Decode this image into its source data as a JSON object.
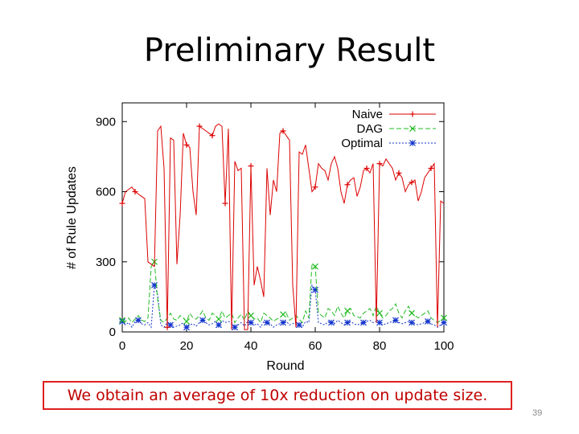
{
  "slide": {
    "title": "Preliminary Result",
    "caption": "We obtain an average of 10x reduction on update size.",
    "page_number": "39"
  },
  "chart_data": {
    "type": "line",
    "title": "",
    "xlabel": "Round",
    "ylabel": "# of Rule Updates",
    "xlim": [
      0,
      100
    ],
    "ylim": [
      0,
      980
    ],
    "xticks": [
      0,
      20,
      40,
      60,
      80,
      100
    ],
    "yticks": [
      0,
      300,
      600,
      900
    ],
    "grid": false,
    "legend_position": "top-right",
    "x": [
      0,
      1,
      2,
      3,
      4,
      5,
      6,
      7,
      8,
      9,
      10,
      11,
      12,
      13,
      14,
      15,
      16,
      17,
      18,
      19,
      20,
      21,
      22,
      23,
      24,
      25,
      26,
      27,
      28,
      29,
      30,
      31,
      32,
      33,
      34,
      35,
      36,
      37,
      38,
      39,
      40,
      41,
      42,
      43,
      44,
      45,
      46,
      47,
      48,
      49,
      50,
      51,
      52,
      53,
      54,
      55,
      56,
      57,
      58,
      59,
      60,
      61,
      62,
      63,
      64,
      65,
      66,
      67,
      68,
      69,
      70,
      71,
      72,
      73,
      74,
      75,
      76,
      77,
      78,
      79,
      80,
      81,
      82,
      83,
      84,
      85,
      86,
      87,
      88,
      89,
      90,
      91,
      92,
      93,
      94,
      95,
      96,
      97,
      98,
      99,
      100
    ],
    "series": [
      {
        "name": "Naive",
        "color": "#dd0000",
        "dash": "solid",
        "marker": "plus",
        "values": [
          550,
          600,
          610,
          620,
          600,
          590,
          580,
          570,
          300,
          290,
          280,
          860,
          880,
          700,
          20,
          830,
          820,
          290,
          500,
          850,
          800,
          790,
          600,
          500,
          880,
          870,
          860,
          850,
          840,
          880,
          890,
          880,
          550,
          870,
          10,
          730,
          690,
          700,
          10,
          10,
          710,
          200,
          280,
          220,
          150,
          700,
          500,
          650,
          600,
          850,
          860,
          840,
          820,
          200,
          20,
          770,
          760,
          800,
          700,
          600,
          620,
          720,
          700,
          690,
          650,
          720,
          750,
          700,
          600,
          550,
          630,
          650,
          660,
          580,
          620,
          690,
          700,
          680,
          720,
          40,
          720,
          710,
          740,
          720,
          700,
          650,
          680,
          660,
          600,
          630,
          640,
          650,
          560,
          600,
          660,
          680,
          700,
          720,
          20,
          560,
          550
        ],
        "marker_x": [
          0,
          4,
          14,
          20,
          24,
          28,
          32,
          40,
          50,
          60,
          70,
          76,
          80,
          86,
          90,
          96
        ]
      },
      {
        "name": "DAG",
        "color": "#22bb22",
        "dash": "6,3",
        "marker": "x",
        "values": [
          50,
          45,
          60,
          40,
          55,
          70,
          50,
          45,
          60,
          280,
          300,
          140,
          50,
          40,
          60,
          80,
          55,
          50,
          70,
          60,
          45,
          80,
          60,
          55,
          70,
          90,
          60,
          50,
          80,
          70,
          55,
          90,
          60,
          70,
          80,
          40,
          60,
          75,
          50,
          90,
          70,
          55,
          60,
          40,
          80,
          70,
          60,
          45,
          55,
          60,
          75,
          80,
          50,
          60,
          70,
          55,
          40,
          90,
          60,
          290,
          280,
          80,
          70,
          60,
          100,
          90,
          70,
          110,
          80,
          60,
          90,
          100,
          70,
          65,
          60,
          80,
          90,
          100,
          70,
          110,
          80,
          60,
          70,
          90,
          100,
          120,
          80,
          60,
          90,
          110,
          80,
          70,
          60,
          70,
          80,
          90,
          60,
          50,
          40,
          50,
          60
        ],
        "marker_x": [
          0,
          10,
          20,
          30,
          40,
          50,
          60,
          70,
          80,
          90,
          100
        ]
      },
      {
        "name": "Optimal",
        "color": "#1133cc",
        "dash": "2,2",
        "marker": "star",
        "values": [
          45,
          30,
          40,
          20,
          45,
          50,
          35,
          30,
          40,
          20,
          200,
          160,
          30,
          20,
          40,
          30,
          20,
          25,
          30,
          40,
          20,
          30,
          35,
          25,
          40,
          50,
          40,
          30,
          35,
          45,
          30,
          50,
          40,
          45,
          40,
          20,
          30,
          40,
          25,
          45,
          40,
          30,
          35,
          20,
          45,
          40,
          35,
          20,
          30,
          35,
          40,
          45,
          30,
          35,
          40,
          30,
          20,
          45,
          40,
          200,
          180,
          40,
          35,
          30,
          45,
          40,
          35,
          50,
          40,
          30,
          40,
          45,
          35,
          30,
          35,
          40,
          45,
          50,
          40,
          45,
          40,
          30,
          35,
          40,
          45,
          50,
          40,
          35,
          40,
          45,
          40,
          35,
          30,
          35,
          40,
          45,
          35,
          30,
          20,
          30,
          40
        ],
        "marker_x": [
          0,
          5,
          10,
          15,
          20,
          25,
          30,
          35,
          40,
          45,
          50,
          55,
          60,
          65,
          70,
          75,
          80,
          85,
          90,
          95,
          100
        ]
      }
    ]
  }
}
